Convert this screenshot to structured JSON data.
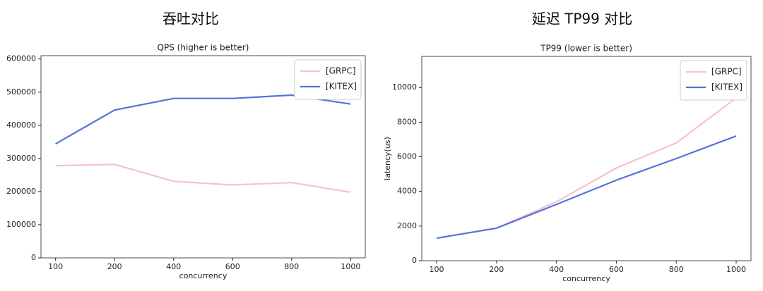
{
  "chart_data": [
    {
      "type": "line",
      "heading": "吞吐对比",
      "title": "QPS (higher is better)",
      "x_label": "concurrency",
      "categories": [
        "100",
        "200",
        "400",
        "600",
        "800",
        "1000"
      ],
      "series": [
        {
          "name": "[GRPC]",
          "color": "#f5c2cd",
          "values": [
            278000,
            282000,
            231000,
            220000,
            227000,
            198000
          ]
        },
        {
          "name": "[KITEX]",
          "color": "#5572d8",
          "values": [
            344000,
            446000,
            481000,
            481000,
            491000,
            464000
          ]
        }
      ],
      "ylim": [
        0,
        610000
      ],
      "yticks": [
        0,
        100000,
        200000,
        300000,
        400000,
        500000,
        600000
      ],
      "legend": "upper right"
    },
    {
      "type": "line",
      "heading": "延迟 TP99 对比",
      "title": "TP99 (lower is better)",
      "x_label": "concurrency",
      "y_label": "latency(us)",
      "categories": [
        "100",
        "200",
        "400",
        "600",
        "800",
        "1000"
      ],
      "series": [
        {
          "name": "[GRPC]",
          "color": "#f5c2cd",
          "values": [
            1300,
            1880,
            3400,
            5350,
            6800,
            9400
          ]
        },
        {
          "name": "[KITEX]",
          "color": "#5572d8",
          "values": [
            1300,
            1880,
            3250,
            4650,
            5900,
            7200
          ]
        }
      ],
      "ylim": [
        0,
        11800
      ],
      "yticks": [
        0,
        2000,
        4000,
        6000,
        8000,
        10000
      ],
      "legend": "upper right"
    }
  ]
}
